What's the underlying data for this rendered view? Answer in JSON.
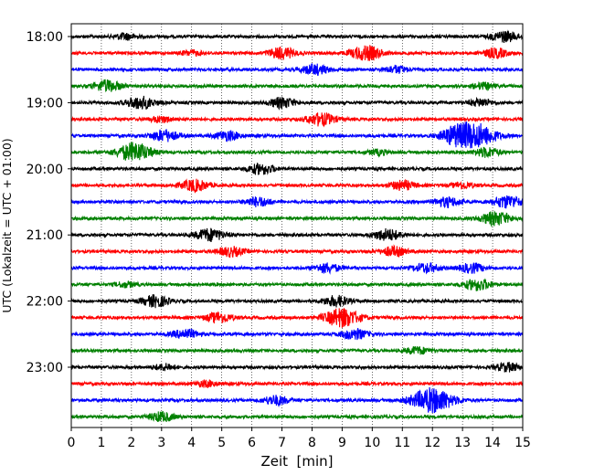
{
  "chart_data": {
    "type": "line",
    "title": "",
    "xlabel": "Zeit  [min]",
    "ylabel": "UTC (Lokalzeit = UTC + 01:00)",
    "xlim": [
      0,
      15
    ],
    "x_ticks": [
      "0",
      "1",
      "2",
      "3",
      "4",
      "5",
      "6",
      "7",
      "8",
      "9",
      "10",
      "11",
      "12",
      "13",
      "14",
      "15"
    ],
    "y_ticks": [
      {
        "label": "18:00",
        "row": 0
      },
      {
        "label": "19:00",
        "row": 4
      },
      {
        "label": "20:00",
        "row": 8
      },
      {
        "label": "21:00",
        "row": 12
      },
      {
        "label": "22:00",
        "row": 16
      },
      {
        "label": "23:00",
        "row": 20
      }
    ],
    "grid": "vertical dotted",
    "row_interval_minutes": 15,
    "colors": [
      "#000000",
      "#ff0000",
      "#0000ff",
      "#008000"
    ],
    "traces": [
      {
        "start": "18:00",
        "events": [
          [
            1.8,
            0.3
          ],
          [
            14.4,
            0.5
          ]
        ]
      },
      {
        "start": "18:15",
        "events": [
          [
            4.0,
            0.25
          ],
          [
            7.0,
            0.55
          ],
          [
            9.8,
            0.7
          ],
          [
            14.1,
            0.45
          ]
        ]
      },
      {
        "start": "18:30",
        "events": [
          [
            8.1,
            0.5
          ],
          [
            10.8,
            0.35
          ]
        ]
      },
      {
        "start": "18:45",
        "events": [
          [
            1.2,
            0.55
          ],
          [
            13.7,
            0.3
          ]
        ]
      },
      {
        "start": "19:00",
        "events": [
          [
            2.3,
            0.6
          ],
          [
            7.0,
            0.5
          ],
          [
            13.6,
            0.35
          ]
        ]
      },
      {
        "start": "19:15",
        "events": [
          [
            3.0,
            0.3
          ],
          [
            8.3,
            0.6
          ]
        ]
      },
      {
        "start": "19:30",
        "events": [
          [
            3.1,
            0.55
          ],
          [
            5.2,
            0.45
          ],
          [
            12.7,
            0.6
          ],
          [
            13.4,
            1.2
          ]
        ]
      },
      {
        "start": "19:45",
        "events": [
          [
            2.1,
            0.9
          ],
          [
            10.2,
            0.25
          ],
          [
            13.8,
            0.45
          ]
        ]
      },
      {
        "start": "20:00",
        "events": [
          [
            6.3,
            0.5
          ]
        ]
      },
      {
        "start": "20:15",
        "events": [
          [
            4.1,
            0.55
          ],
          [
            11.0,
            0.45
          ],
          [
            13.0,
            0.3
          ]
        ]
      },
      {
        "start": "20:30",
        "events": [
          [
            6.2,
            0.45
          ],
          [
            12.5,
            0.45
          ],
          [
            14.5,
            0.6
          ]
        ]
      },
      {
        "start": "20:45",
        "events": [
          [
            14.1,
            0.65
          ]
        ]
      },
      {
        "start": "21:00",
        "events": [
          [
            4.6,
            0.6
          ],
          [
            10.5,
            0.55
          ]
        ]
      },
      {
        "start": "21:15",
        "events": [
          [
            5.3,
            0.45
          ],
          [
            10.7,
            0.45
          ]
        ]
      },
      {
        "start": "21:30",
        "events": [
          [
            8.5,
            0.45
          ],
          [
            11.8,
            0.45
          ],
          [
            13.3,
            0.45
          ]
        ]
      },
      {
        "start": "21:45",
        "events": [
          [
            1.8,
            0.25
          ],
          [
            13.5,
            0.55
          ]
        ]
      },
      {
        "start": "22:00",
        "events": [
          [
            2.8,
            0.55
          ],
          [
            8.8,
            0.5
          ]
        ]
      },
      {
        "start": "22:15",
        "events": [
          [
            4.9,
            0.5
          ],
          [
            9.0,
            0.9
          ]
        ]
      },
      {
        "start": "22:30",
        "events": [
          [
            3.8,
            0.45
          ],
          [
            9.4,
            0.5
          ]
        ]
      },
      {
        "start": "22:45",
        "events": [
          [
            11.5,
            0.35
          ]
        ]
      },
      {
        "start": "23:00",
        "events": [
          [
            3.1,
            0.3
          ],
          [
            14.5,
            0.4
          ]
        ]
      },
      {
        "start": "23:15",
        "events": [
          [
            4.5,
            0.3
          ]
        ]
      },
      {
        "start": "23:30",
        "events": [
          [
            6.8,
            0.45
          ],
          [
            12.0,
            1.2
          ]
        ]
      },
      {
        "start": "23:45",
        "events": [
          [
            3.0,
            0.45
          ]
        ]
      }
    ]
  }
}
